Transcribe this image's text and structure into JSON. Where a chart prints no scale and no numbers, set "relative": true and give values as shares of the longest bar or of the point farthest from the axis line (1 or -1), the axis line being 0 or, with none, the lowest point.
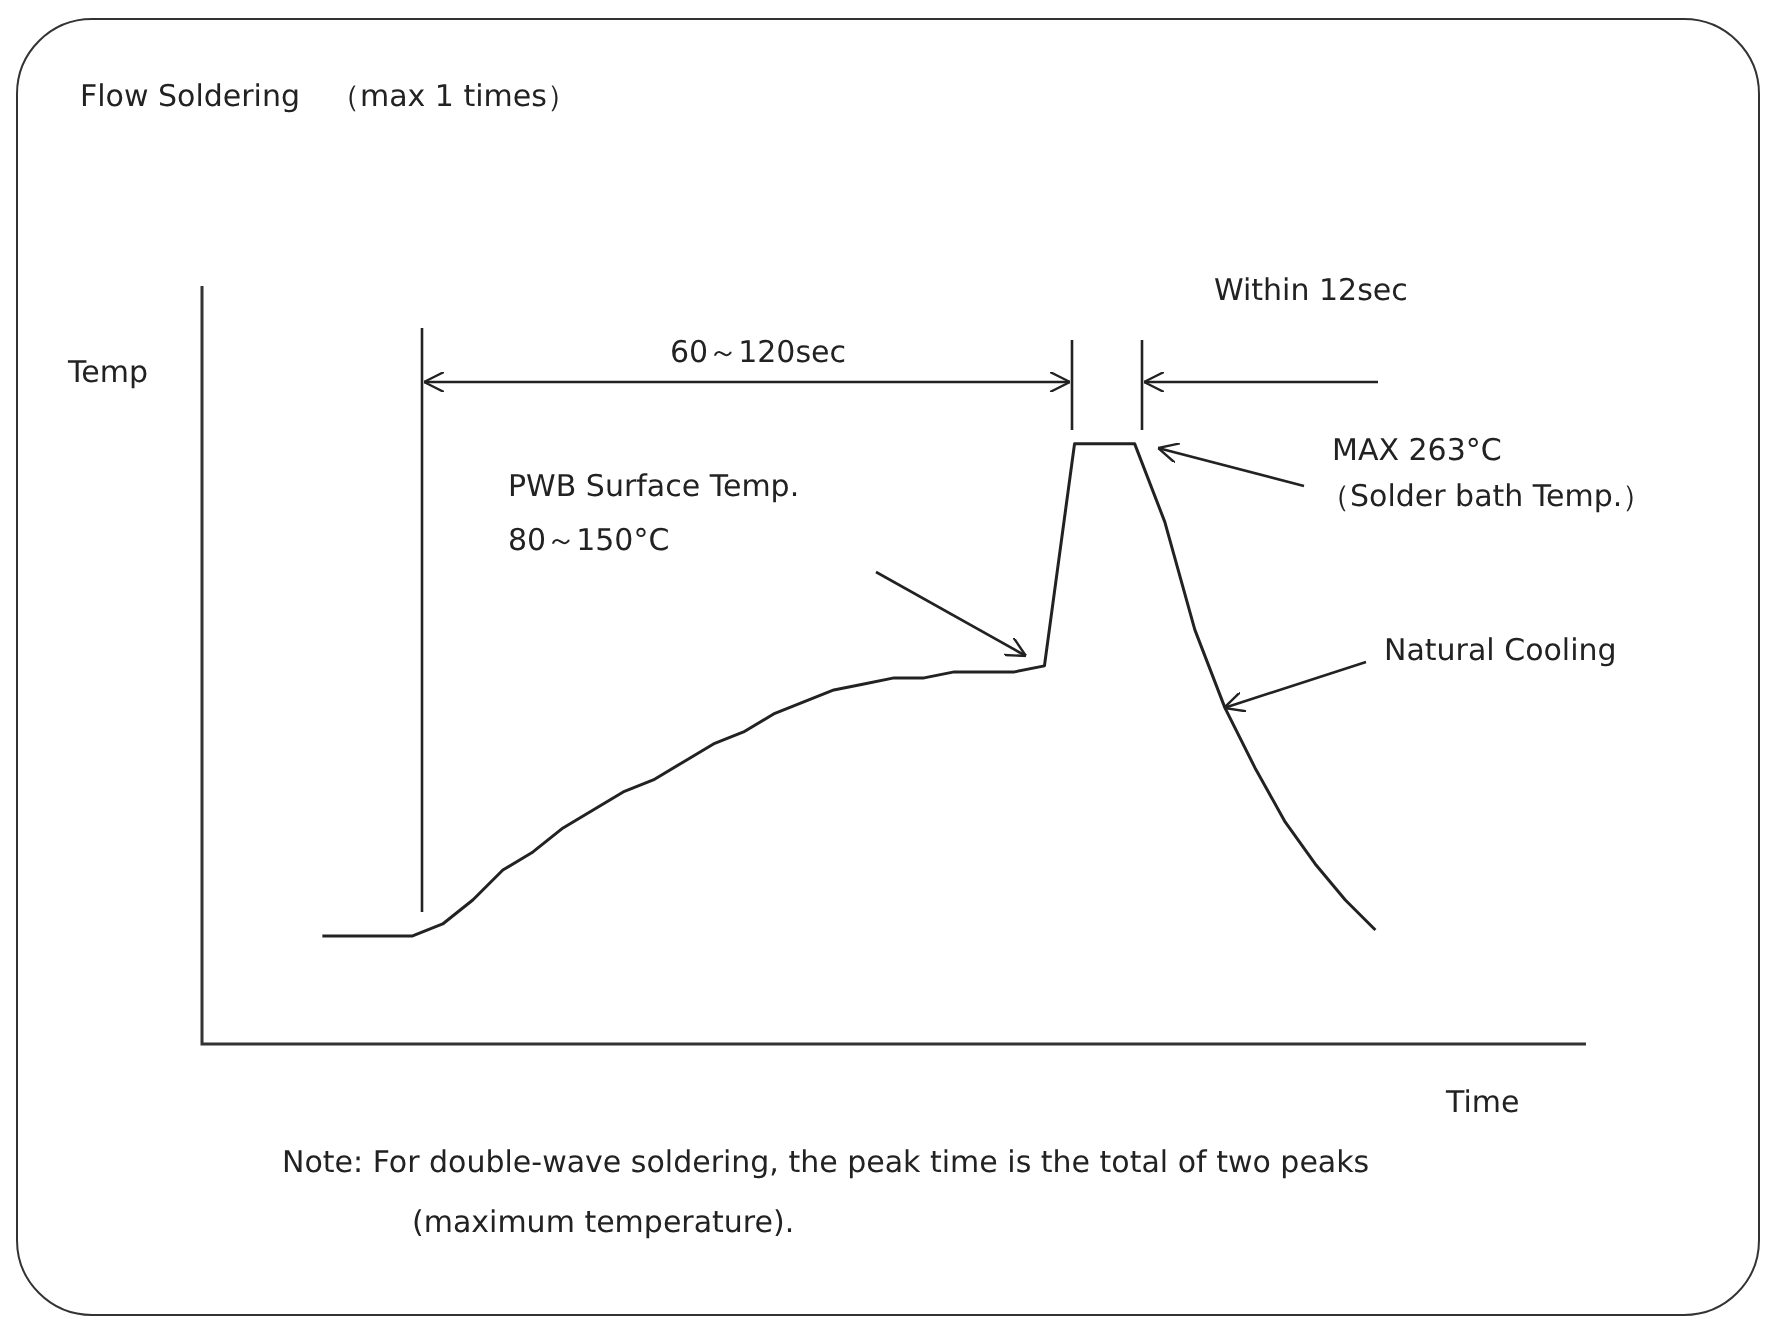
{
  "chart_data": {
    "type": "line",
    "title": "Flow Soldering　（max 1 times）",
    "xlabel": "Time",
    "ylabel": "Temp",
    "relative": true,
    "marker": "none",
    "line_style": "solid",
    "categories": [
      null,
      null,
      null,
      null,
      null,
      null,
      null,
      null,
      null,
      null,
      null,
      null,
      null,
      null,
      null,
      null,
      null,
      null,
      null,
      null,
      null,
      null,
      null,
      null,
      null,
      null,
      null,
      null,
      null,
      null,
      null,
      null,
      null,
      null,
      null,
      null,
      null,
      null,
      null,
      null,
      null,
      null,
      null,
      null,
      null,
      null,
      null
    ],
    "series": [
      {
        "color": "#222222",
        "values": [
          null,
          null,
          null,
          null,
          0.18,
          0.18,
          0.18,
          0.18,
          0.2,
          0.24,
          0.29,
          0.32,
          0.36,
          0.39,
          0.42,
          0.44,
          0.47,
          0.5,
          0.52,
          0.55,
          0.57,
          0.59,
          0.6,
          0.61,
          0.61,
          0.62,
          0.62,
          0.62,
          0.63,
          1,
          1,
          1,
          0.87,
          0.69,
          0.56,
          0.46,
          0.37,
          0.3,
          0.24,
          0.19,
          null,
          null,
          null,
          null,
          null,
          null,
          null
        ]
      }
    ],
    "annotations": [
      "60～120sec",
      "Within 12sec",
      "MAX 263°C",
      "（Solder bath Temp.）",
      "PWB Surface Temp.",
      "80～150°C",
      "Natural Cooling",
      "Note: For double-wave soldering, the peak time is the total of two peaks (maximum temperature)."
    ]
  }
}
